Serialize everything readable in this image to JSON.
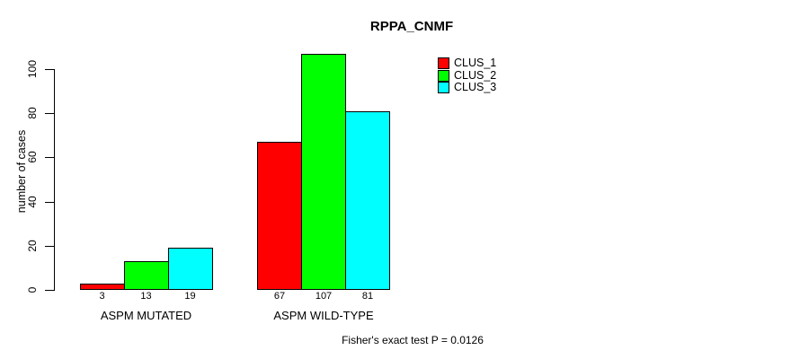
{
  "chart_data": {
    "type": "bar",
    "title": "RPPA_CNMF",
    "ylabel": "number of cases",
    "xlabel": "",
    "categories": [
      "ASPM MUTATED",
      "ASPM WILD-TYPE"
    ],
    "series": [
      {
        "name": "CLUS_1",
        "color": "#ff0000",
        "values": [
          3,
          67
        ]
      },
      {
        "name": "CLUS_2",
        "color": "#00ff00",
        "values": [
          13,
          107
        ]
      },
      {
        "name": "CLUS_3",
        "color": "#00ffff",
        "values": [
          19,
          81
        ]
      }
    ],
    "yticks": [
      0,
      20,
      40,
      60,
      80,
      100
    ],
    "ylim": [
      0,
      107
    ],
    "grid": false,
    "show_bar_value_labels": true,
    "legend": {
      "position": "top-right",
      "entries": [
        "CLUS_1",
        "CLUS_2",
        "CLUS_3"
      ]
    },
    "annotation": "Fisher's exact test P = 0.0126",
    "bar_border_color": "#000000",
    "axis_color": "#000000",
    "background_color": "#ffffff"
  }
}
